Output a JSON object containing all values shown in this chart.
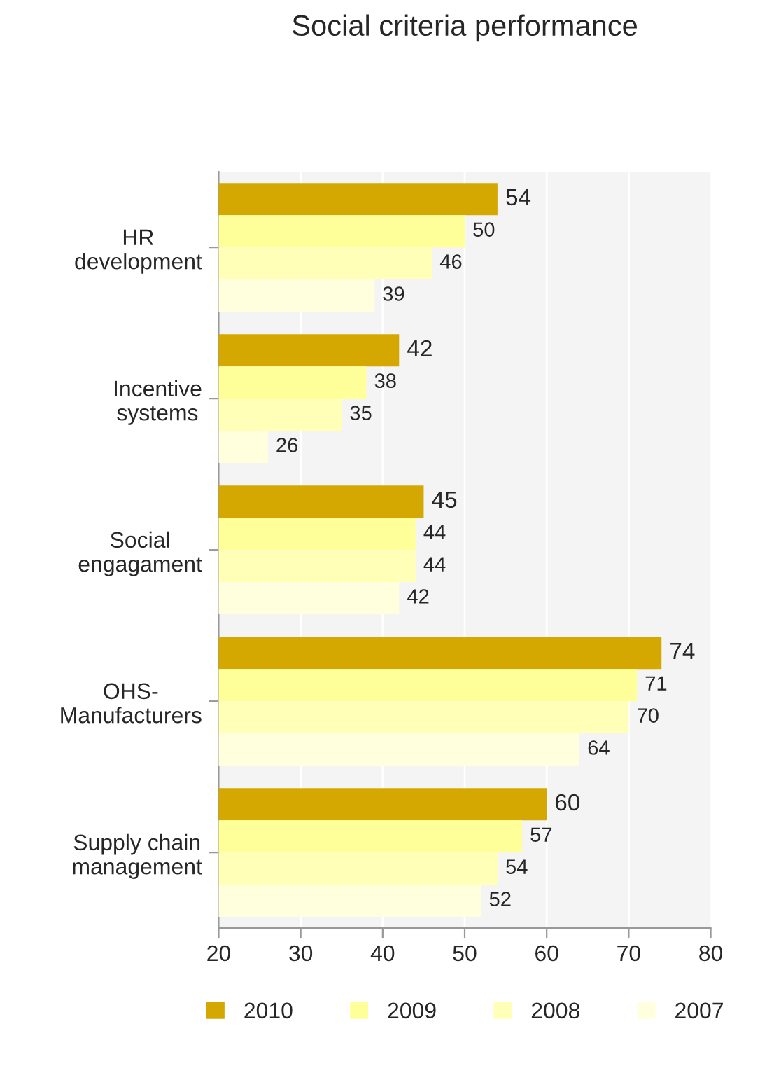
{
  "chart_data": {
    "type": "bar",
    "orientation": "horizontal",
    "title": "Social criteria performance",
    "categories": [
      "HR\ndevelopment",
      "Incentive\nsystems",
      "Social\nengagament",
      "OHS-\nManufacturers",
      "Supply chain\nmanagement"
    ],
    "series": [
      {
        "name": "2010",
        "color": "#d4a800",
        "values": [
          54,
          42,
          45,
          74,
          60
        ]
      },
      {
        "name": "2009",
        "color": "#ffff99",
        "values": [
          50,
          38,
          44,
          71,
          57
        ]
      },
      {
        "name": "2008",
        "color": "#ffffb8",
        "values": [
          46,
          35,
          44,
          70,
          54
        ]
      },
      {
        "name": "2007",
        "color": "#ffffdd",
        "values": [
          39,
          26,
          42,
          64,
          52
        ]
      }
    ],
    "xlim": [
      20,
      80
    ],
    "xticks": [
      20,
      30,
      40,
      50,
      60,
      70,
      80
    ],
    "grid": "x",
    "legend": "bottom",
    "data_labels": true
  }
}
